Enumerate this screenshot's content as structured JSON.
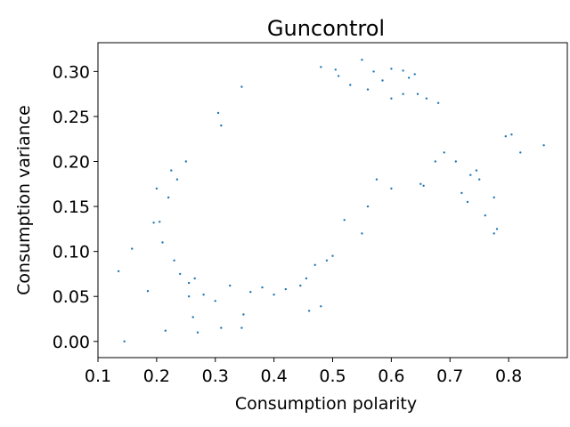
{
  "chart_data": {
    "type": "scatter",
    "title": "Guncontrol",
    "xlabel": "Consumption polarity",
    "ylabel": "Consumption variance",
    "xlim": [
      0.1,
      0.9
    ],
    "ylim": [
      -0.018,
      0.332
    ],
    "xticks": [
      0.1,
      0.2,
      0.3,
      0.4,
      0.5,
      0.6,
      0.7,
      0.8
    ],
    "xtick_labels": [
      "0.1",
      "0.2",
      "0.3",
      "0.4",
      "0.5",
      "0.6",
      "0.7",
      "0.8"
    ],
    "yticks": [
      0.0,
      0.05,
      0.1,
      0.15,
      0.2,
      0.25,
      0.3
    ],
    "ytick_labels": [
      "0.00",
      "0.05",
      "0.10",
      "0.15",
      "0.20",
      "0.25",
      "0.30"
    ],
    "grid": false,
    "marker_color": "#1f77b4",
    "series": [
      {
        "points": [
          [
            0.145,
            0.0
          ],
          [
            0.135,
            0.078
          ],
          [
            0.158,
            0.103
          ],
          [
            0.185,
            0.056
          ],
          [
            0.205,
            0.133
          ],
          [
            0.215,
            0.012
          ],
          [
            0.27,
            0.01
          ],
          [
            0.255,
            0.05
          ],
          [
            0.262,
            0.027
          ],
          [
            0.31,
            0.015
          ],
          [
            0.345,
            0.015
          ],
          [
            0.348,
            0.03
          ],
          [
            0.345,
            0.283
          ],
          [
            0.305,
            0.254
          ],
          [
            0.31,
            0.24
          ],
          [
            0.22,
            0.16
          ],
          [
            0.225,
            0.19
          ],
          [
            0.235,
            0.18
          ],
          [
            0.25,
            0.2
          ],
          [
            0.2,
            0.17
          ],
          [
            0.195,
            0.132
          ],
          [
            0.21,
            0.11
          ],
          [
            0.23,
            0.09
          ],
          [
            0.24,
            0.075
          ],
          [
            0.255,
            0.065
          ],
          [
            0.265,
            0.07
          ],
          [
            0.28,
            0.052
          ],
          [
            0.3,
            0.045
          ],
          [
            0.325,
            0.062
          ],
          [
            0.36,
            0.055
          ],
          [
            0.38,
            0.06
          ],
          [
            0.4,
            0.052
          ],
          [
            0.42,
            0.058
          ],
          [
            0.445,
            0.062
          ],
          [
            0.455,
            0.07
          ],
          [
            0.46,
            0.034
          ],
          [
            0.48,
            0.039
          ],
          [
            0.47,
            0.085
          ],
          [
            0.49,
            0.09
          ],
          [
            0.5,
            0.095
          ],
          [
            0.52,
            0.135
          ],
          [
            0.55,
            0.12
          ],
          [
            0.56,
            0.15
          ],
          [
            0.575,
            0.18
          ],
          [
            0.6,
            0.17
          ],
          [
            0.65,
            0.175
          ],
          [
            0.655,
            0.173
          ],
          [
            0.675,
            0.2
          ],
          [
            0.69,
            0.21
          ],
          [
            0.71,
            0.2
          ],
          [
            0.735,
            0.185
          ],
          [
            0.75,
            0.18
          ],
          [
            0.775,
            0.16
          ],
          [
            0.78,
            0.125
          ],
          [
            0.775,
            0.12
          ],
          [
            0.82,
            0.21
          ],
          [
            0.86,
            0.218
          ],
          [
            0.795,
            0.228
          ],
          [
            0.805,
            0.23
          ],
          [
            0.745,
            0.19
          ],
          [
            0.72,
            0.165
          ],
          [
            0.73,
            0.155
          ],
          [
            0.76,
            0.14
          ],
          [
            0.57,
            0.3
          ],
          [
            0.55,
            0.313
          ],
          [
            0.505,
            0.302
          ],
          [
            0.48,
            0.305
          ],
          [
            0.6,
            0.303
          ],
          [
            0.62,
            0.301
          ],
          [
            0.64,
            0.297
          ],
          [
            0.51,
            0.295
          ],
          [
            0.53,
            0.285
          ],
          [
            0.56,
            0.28
          ],
          [
            0.585,
            0.29
          ],
          [
            0.63,
            0.293
          ],
          [
            0.6,
            0.27
          ],
          [
            0.62,
            0.275
          ],
          [
            0.645,
            0.275
          ],
          [
            0.66,
            0.27
          ],
          [
            0.68,
            0.265
          ]
        ]
      }
    ]
  }
}
